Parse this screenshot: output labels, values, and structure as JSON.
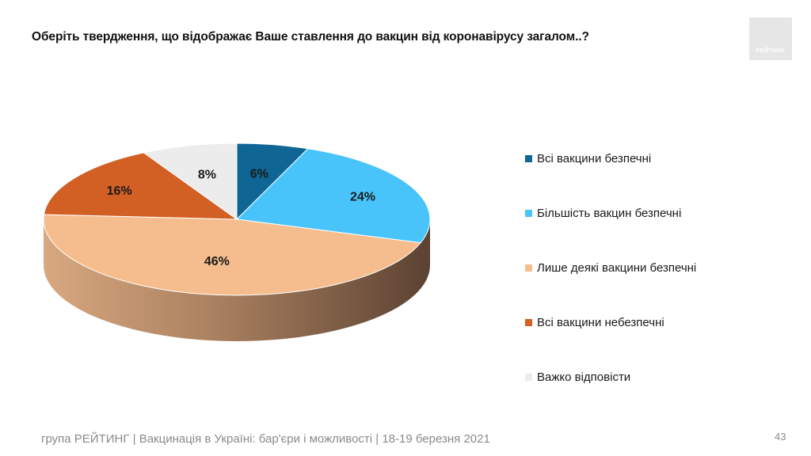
{
  "title": "Оберіть твердження, що відображає Ваше ставлення до вакцин від коронавірусу загалом..?",
  "logo_text": "РЕЙТИНГ",
  "footer": "група РЕЙТИНГ | Вакцинація в Україні: бар'єри і можливості | 18-19 березня 2021",
  "page_number": "43",
  "chart_data": {
    "type": "pie",
    "style": "3d",
    "legend_position": "right",
    "slices": [
      {
        "name": "Всі вакцини безпечні",
        "value": 6,
        "label": "6%",
        "color": "#0f6593"
      },
      {
        "name": "Більшість вакцин безпечні",
        "value": 24,
        "label": "24%",
        "color": "#49c4fa"
      },
      {
        "name": "Лише деякі вакцини безпечні",
        "value": 46,
        "label": "46%",
        "color": "#f5bd8e"
      },
      {
        "name": "Всі вакцини небезпечні",
        "value": 16,
        "label": "16%",
        "color": "#d25f23"
      },
      {
        "name": "Важко відповісти",
        "value": 8,
        "label": "8%",
        "color": "#ececec"
      }
    ]
  }
}
